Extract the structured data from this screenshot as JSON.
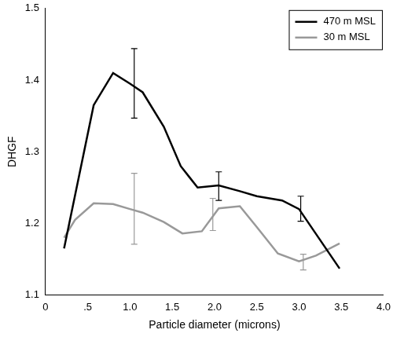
{
  "chart_data": {
    "type": "line",
    "x_label": "Particle diameter (microns)",
    "y_label": "DHGF",
    "xlim": [
      0,
      4.0
    ],
    "xticks": [
      0,
      {
        "value": 0.5,
        "label": ".5"
      },
      {
        "value": 1.0,
        "label": "1.0"
      },
      {
        "value": 1.5,
        "label": "1.5"
      },
      {
        "value": 2.0,
        "label": "2.0"
      },
      {
        "value": 2.5,
        "label": "2.5"
      },
      {
        "value": 3.0,
        "label": "3.0"
      },
      {
        "value": 3.5,
        "label": "3.5"
      },
      {
        "value": 4.0,
        "label": "4.0"
      }
    ],
    "ylim": [
      1.1,
      1.5
    ],
    "yticks": [
      1.1,
      1.2,
      1.3,
      1.4,
      1.5
    ],
    "grid": false,
    "legend": "upper right",
    "series": [
      {
        "name": "470 m MSL",
        "color": "#000000",
        "x": [
          0.22,
          0.57,
          0.8,
          1.0,
          1.15,
          1.4,
          1.6,
          1.7,
          1.8,
          2.05,
          2.3,
          2.5,
          2.8,
          3.0,
          3.48
        ],
        "values": [
          1.165,
          1.365,
          1.41,
          1.395,
          1.383,
          1.335,
          1.28,
          1.265,
          1.25,
          1.253,
          1.245,
          1.238,
          1.232,
          1.22,
          1.137
        ],
        "error_bars": [
          {
            "x": 1.05,
            "low": 1.347,
            "high": 1.444
          },
          {
            "x": 2.05,
            "low": 1.232,
            "high": 1.272
          },
          {
            "x": 3.02,
            "low": 1.203,
            "high": 1.238
          }
        ]
      },
      {
        "name": "30 m MSL",
        "color": "#999999",
        "x": [
          0.22,
          0.35,
          0.57,
          0.8,
          1.0,
          1.15,
          1.4,
          1.62,
          1.85,
          2.05,
          2.3,
          2.5,
          2.75,
          3.0,
          3.2,
          3.48
        ],
        "values": [
          1.18,
          1.205,
          1.228,
          1.227,
          1.22,
          1.215,
          1.202,
          1.186,
          1.189,
          1.221,
          1.224,
          1.195,
          1.158,
          1.147,
          1.155,
          1.172
        ],
        "error_bars": [
          {
            "x": 1.05,
            "low": 1.171,
            "high": 1.27
          },
          {
            "x": 1.98,
            "low": 1.19,
            "high": 1.235
          },
          {
            "x": 3.05,
            "low": 1.135,
            "high": 1.157
          }
        ]
      }
    ]
  }
}
